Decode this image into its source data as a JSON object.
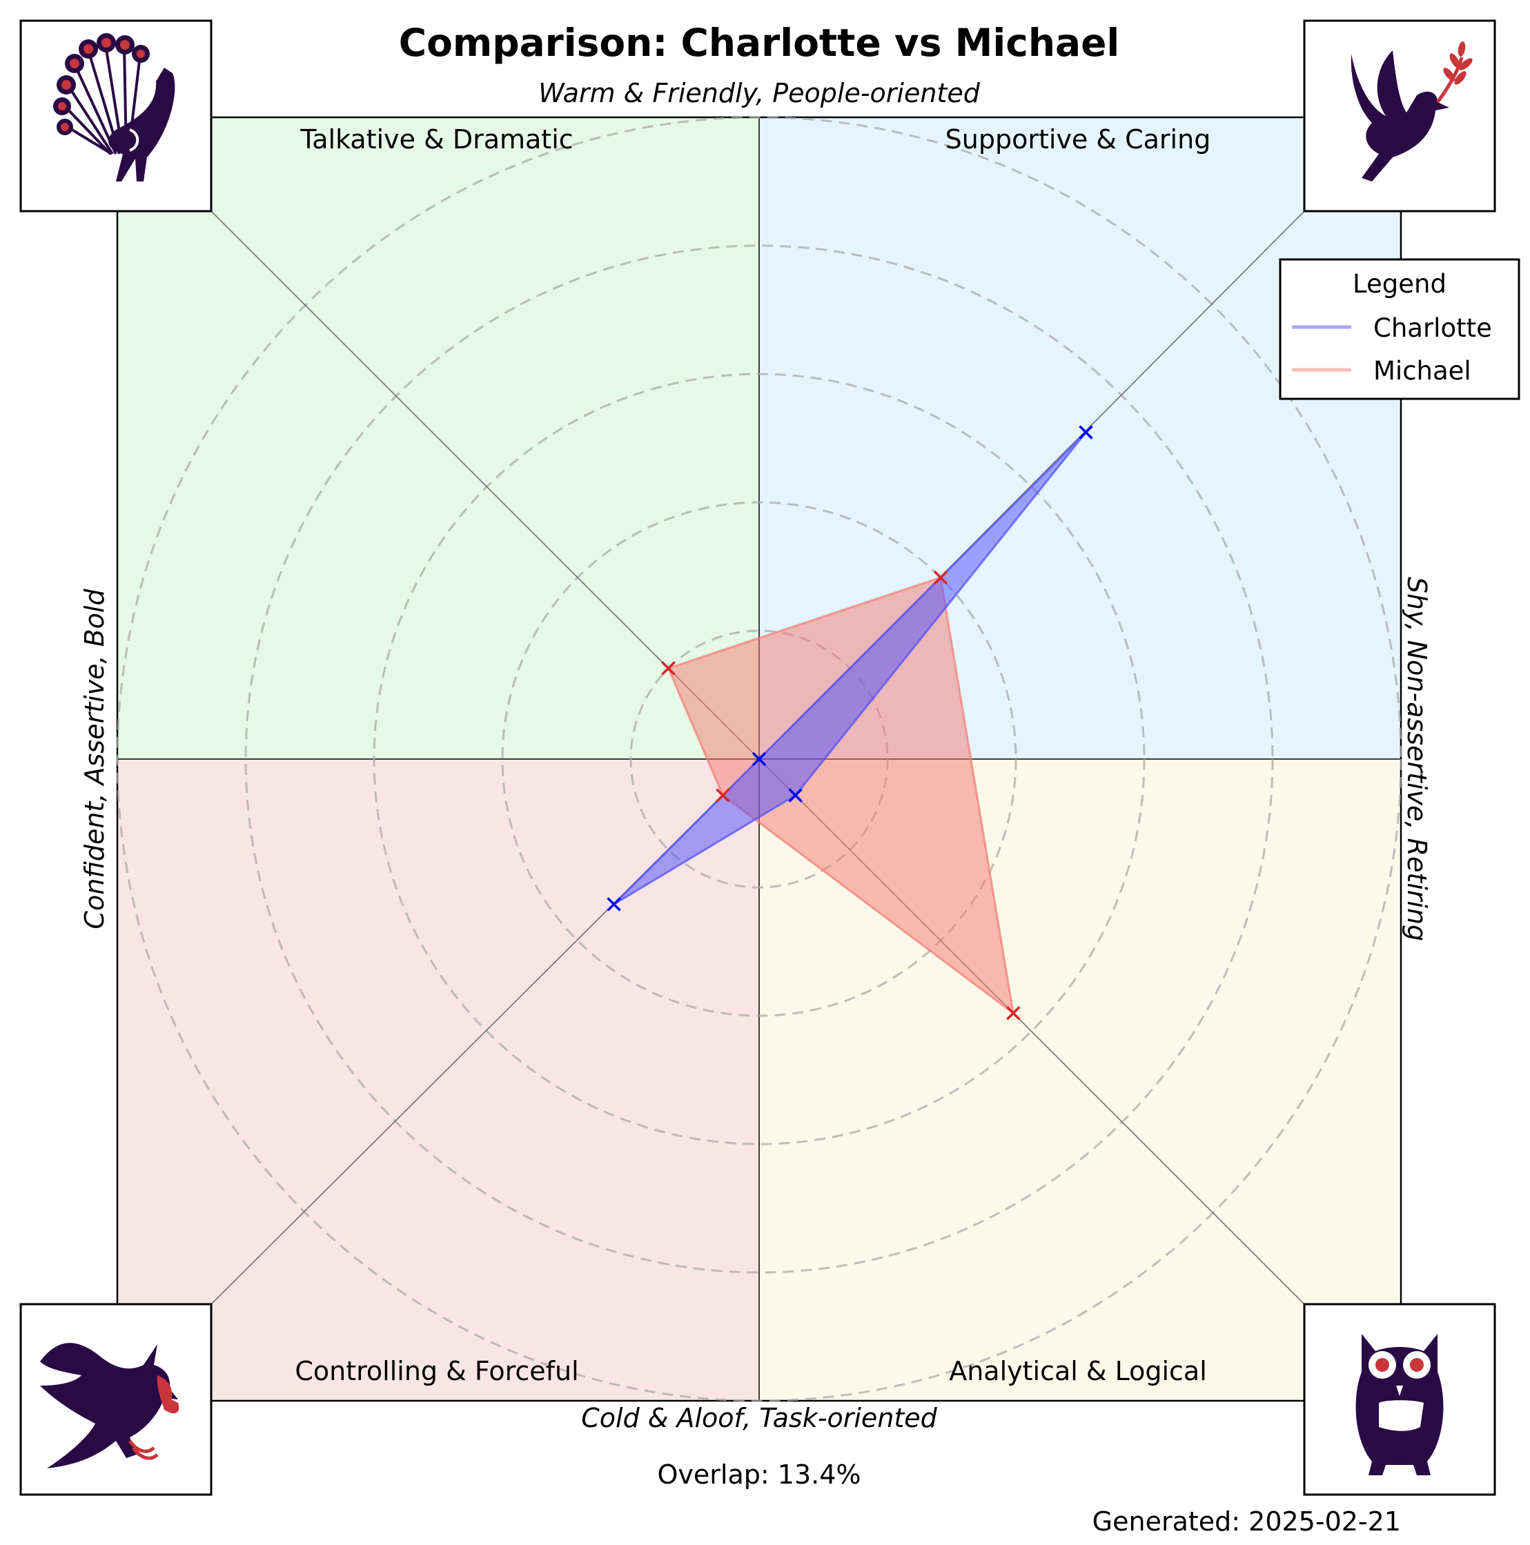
{
  "chart_data": {
    "type": "radar",
    "title": "Comparison: Charlotte vs Michael",
    "axis_labels": {
      "top": "Warm & Friendly, People-oriented",
      "bottom": "Cold & Aloof, Task-oriented",
      "left": "Confident, Assertive, Bold",
      "right": "Shy, Non-assertive, Retiring"
    },
    "quadrants": [
      {
        "name": "Talkative & Dramatic",
        "position": "top-left",
        "color": "#e6f8e6",
        "icon": "peacock-icon"
      },
      {
        "name": "Supportive & Caring",
        "position": "top-right",
        "color": "#e5f4fd",
        "icon": "dove-icon"
      },
      {
        "name": "Controlling & Forceful",
        "position": "bottom-left",
        "color": "#f9e5e5",
        "icon": "eagle-icon"
      },
      {
        "name": "Analytical & Logical",
        "position": "bottom-right",
        "color": "#faf9ea",
        "icon": "owl-icon"
      }
    ],
    "axes": [
      "Supportive & Caring",
      "Analytical & Logical",
      "Controlling & Forceful",
      "Talkative & Dramatic"
    ],
    "rmax": 5,
    "rings": [
      1,
      2,
      3,
      4,
      5
    ],
    "series": [
      {
        "name": "Charlotte",
        "color": "#0000ff",
        "fill": "#4d4dff",
        "values": [
          3.6,
          0.4,
          1.6,
          0.0
        ]
      },
      {
        "name": "Michael",
        "color": "#d62728",
        "fill": "#f47a70",
        "values": [
          2.0,
          2.8,
          0.4,
          1.0
        ]
      }
    ],
    "legend": {
      "title": "Legend",
      "position": "top-right"
    },
    "grid": true
  },
  "footer": {
    "overlap": "Overlap: 13.4%",
    "generated": "Generated: 2025-02-21"
  },
  "colors": {
    "icon_dark": "#2a0a45",
    "icon_accent": "#c8353a"
  }
}
